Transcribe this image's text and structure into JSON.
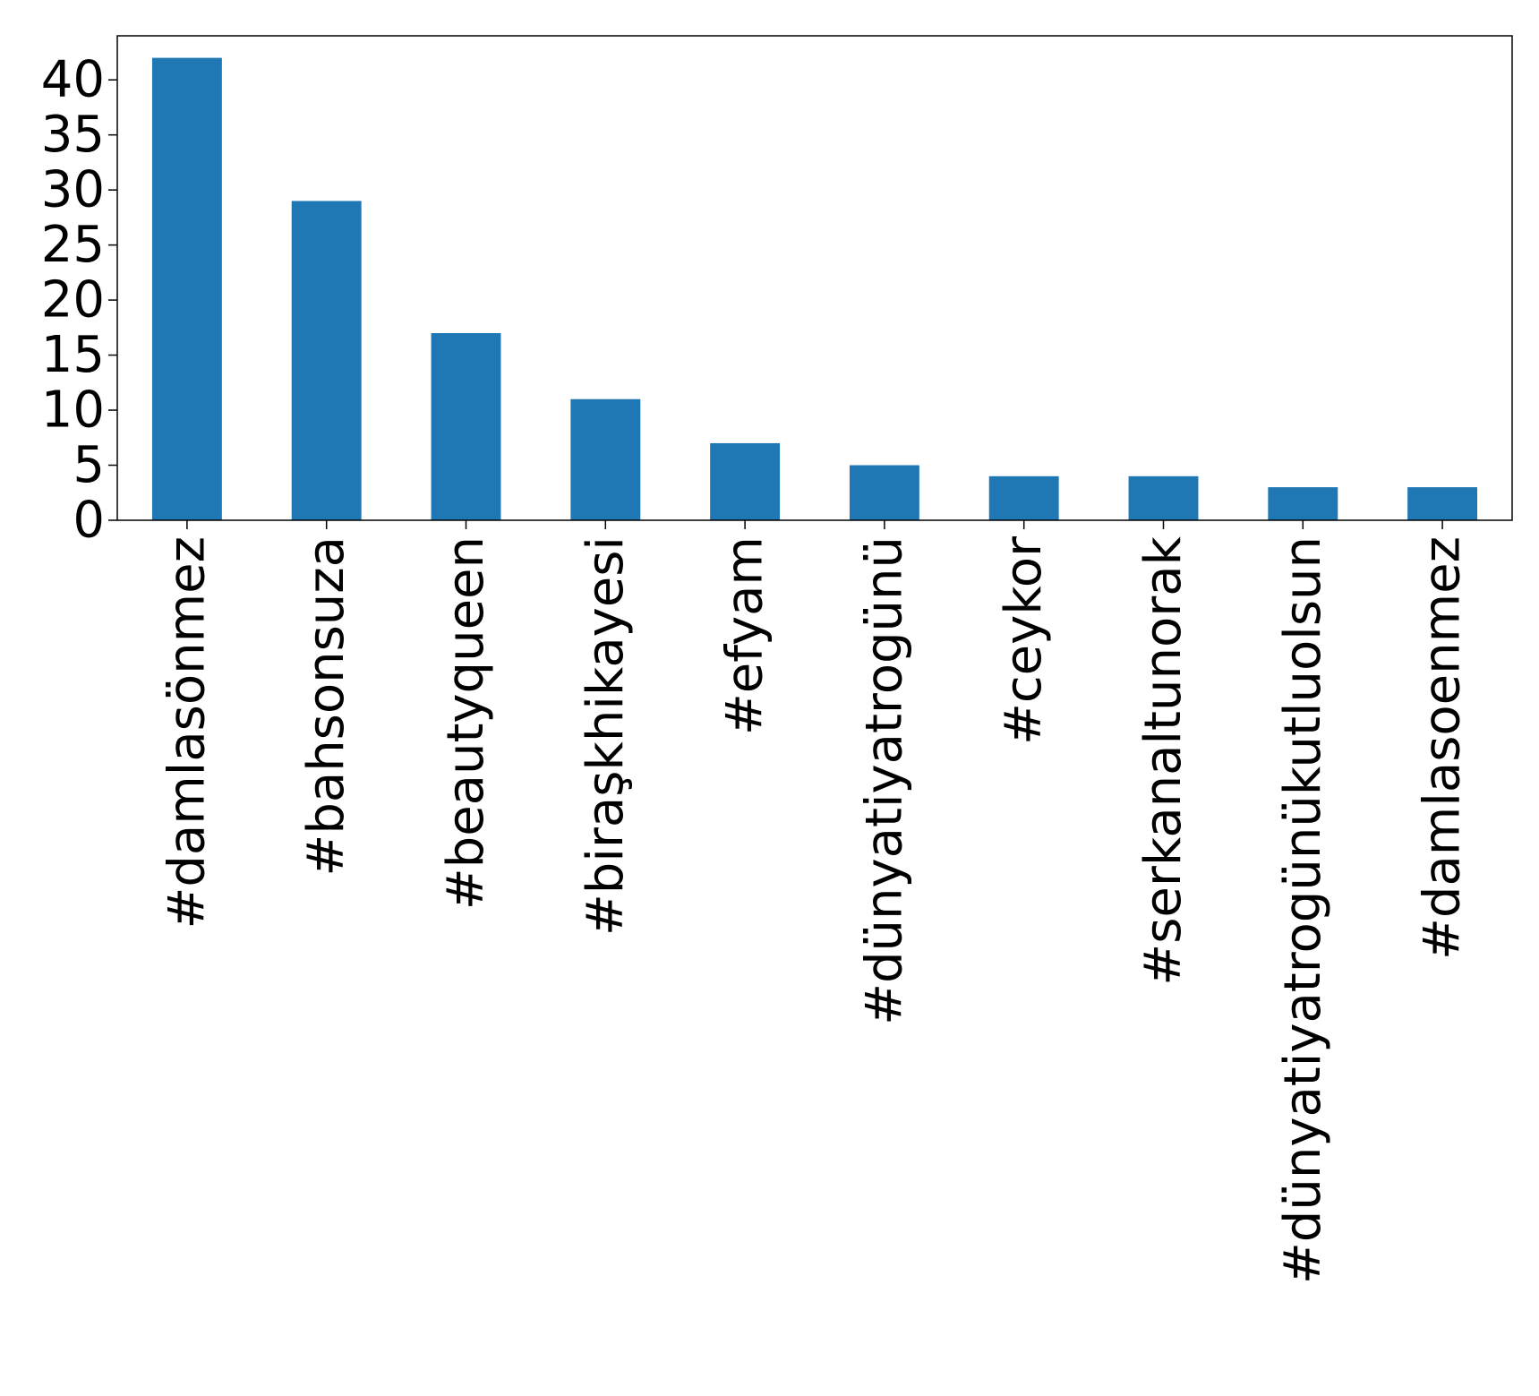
{
  "chart_data": {
    "type": "bar",
    "categories": [
      "#damlasönmez",
      "#bahsonsuza",
      "#beautyqueen",
      "#biraşkhikayesi",
      "#efyam",
      "#dünyatiyatrogünü",
      "#ceykor",
      "#serkanaltunorak",
      "#dünyatiyatrogünükutluolsun",
      "#damlasoenmez"
    ],
    "values": [
      42,
      29,
      17,
      11,
      7,
      5,
      4,
      4,
      3,
      3
    ],
    "ylim": [
      0,
      44
    ],
    "yticks": [
      0,
      5,
      10,
      15,
      20,
      25,
      30,
      35,
      40
    ],
    "bar_color": "#1f77b4",
    "grid": false,
    "legend": "none"
  }
}
